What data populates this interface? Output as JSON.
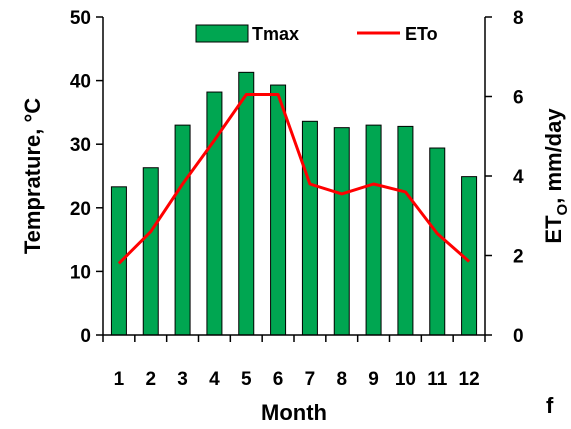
{
  "chart_data": {
    "type": "bar+line",
    "categories": [
      "1",
      "2",
      "3",
      "4",
      "5",
      "6",
      "7",
      "8",
      "9",
      "10",
      "11",
      "12"
    ],
    "series": [
      {
        "name": "Tmax",
        "type": "bar",
        "axis": "left",
        "color": "#00a651",
        "values": [
          23.3,
          26.3,
          33.0,
          38.2,
          41.3,
          39.3,
          33.6,
          32.6,
          33.0,
          32.8,
          29.4,
          24.9
        ]
      },
      {
        "name": "ETo",
        "type": "line",
        "axis": "right",
        "color": "#ff0000",
        "values": [
          1.8,
          2.6,
          3.8,
          4.9,
          6.05,
          6.05,
          3.8,
          3.55,
          3.8,
          3.6,
          2.55,
          1.85
        ]
      }
    ],
    "xlabel": "Month",
    "ylabel_left": "Temprature, °C",
    "ylabel_right": "ETO, mm/day",
    "ylim_left": [
      0,
      50
    ],
    "ylim_right": [
      0,
      8
    ],
    "yticks_left": [
      "0",
      "10",
      "20",
      "30",
      "40",
      "50"
    ],
    "yticks_right": [
      "0",
      "2",
      "4",
      "6",
      "8"
    ],
    "legend": [
      "Tmax",
      "ETo"
    ],
    "legend_position": "top",
    "grid": false,
    "panel_label": "f"
  }
}
